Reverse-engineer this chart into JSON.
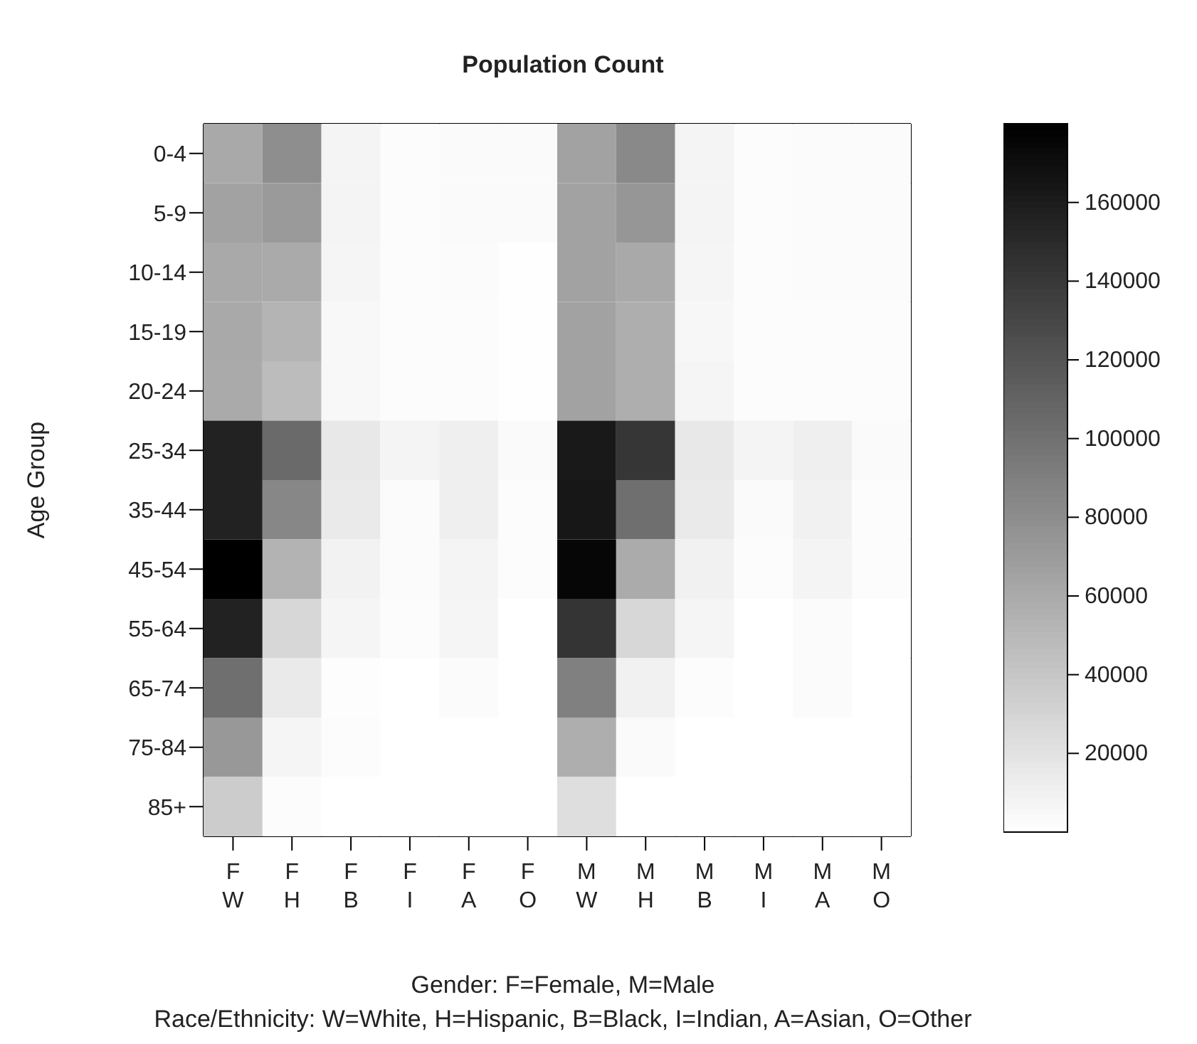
{
  "chart_data": {
    "type": "heatmap",
    "title": "Population Count",
    "xlabel": "Gender: F=Female, M=Male\nRace/Ethnicity: W=White, H=Hispanic, B=Black, I=Indian, A=Asian, O=Other",
    "ylabel": "Age Group",
    "categories": [
      "F\nW",
      "F\nH",
      "F\nB",
      "F\nI",
      "F\nA",
      "F\nO",
      "M\nW",
      "M\nH",
      "M\nB",
      "M\nI",
      "M\nA",
      "M\nO"
    ],
    "y_categories": [
      "0-4",
      "5-9",
      "10-14",
      "15-19",
      "20-24",
      "25-34",
      "35-44",
      "45-54",
      "55-64",
      "65-74",
      "75-84",
      "85+"
    ],
    "cells": [
      [
        61000,
        80000,
        8000,
        2000,
        3500,
        3500,
        66000,
        83000,
        8000,
        2000,
        3000,
        3000
      ],
      [
        66000,
        71000,
        8000,
        2000,
        3500,
        3500,
        66000,
        74000,
        8000,
        2000,
        3000,
        3000
      ],
      [
        61000,
        60000,
        7000,
        2000,
        3000,
        1000,
        66000,
        61000,
        7000,
        2000,
        3000,
        3000
      ],
      [
        61000,
        53000,
        5000,
        2000,
        2000,
        1000,
        66000,
        57000,
        6000,
        2000,
        2000,
        2000
      ],
      [
        60000,
        47000,
        5000,
        2000,
        2000,
        1000,
        66000,
        57000,
        7000,
        2000,
        2000,
        2000
      ],
      [
        156000,
        105000,
        16000,
        8000,
        11000,
        3500,
        162000,
        142000,
        16000,
        8000,
        11000,
        3500
      ],
      [
        156000,
        85000,
        15000,
        3000,
        11000,
        2000,
        164000,
        102000,
        15000,
        3500,
        10000,
        2000
      ],
      [
        180000,
        54000,
        9000,
        3000,
        8000,
        2000,
        176000,
        59000,
        10000,
        2000,
        8000,
        2000
      ],
      [
        156000,
        28000,
        7000,
        2000,
        7000,
        0,
        143000,
        28000,
        7000,
        0,
        3000,
        0
      ],
      [
        102000,
        15000,
        1500,
        0,
        3000,
        0,
        90000,
        10000,
        2000,
        0,
        3000,
        0
      ],
      [
        73000,
        7000,
        2000,
        0,
        0,
        0,
        57000,
        3500,
        0,
        0,
        0,
        0
      ],
      [
        36000,
        2000,
        0,
        0,
        0,
        0,
        23000,
        0,
        0,
        0,
        0,
        0
      ]
    ],
    "clim": [
      0,
      180000
    ],
    "cticks": [
      20000,
      40000,
      60000,
      80000,
      100000,
      120000,
      140000,
      160000
    ]
  }
}
